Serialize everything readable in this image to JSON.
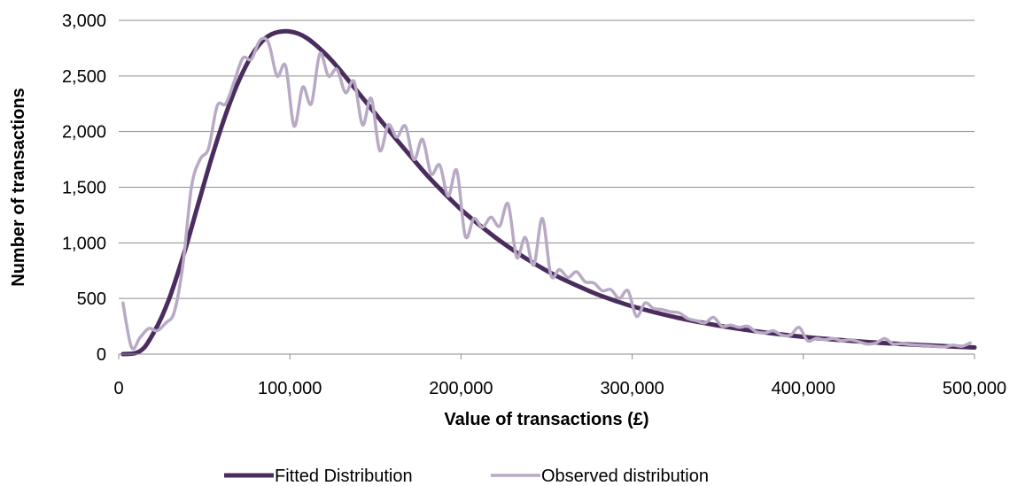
{
  "chart_data": {
    "type": "line",
    "title": "",
    "xlabel": "Value of transactions (£)",
    "ylabel": "Number of transactions",
    "xlim": [
      0,
      500000
    ],
    "ylim": [
      0,
      3000
    ],
    "x_ticks": [
      0,
      100000,
      200000,
      300000,
      400000,
      500000
    ],
    "x_tick_labels": [
      "0",
      "100,000",
      "200,000",
      "300,000",
      "400,000",
      "500,000"
    ],
    "y_ticks": [
      0,
      500,
      1000,
      1500,
      2000,
      2500,
      3000
    ],
    "y_tick_labels": [
      "0",
      "500",
      "1,000",
      "1,500",
      "2,000",
      "2,500",
      "3,000"
    ],
    "grid": "horizontal",
    "legend_position": "bottom",
    "series": [
      {
        "name": "Fitted Distribution",
        "color": "#4b2c5e",
        "x": [
          2500,
          10000,
          15000,
          20000,
          25000,
          30000,
          35000,
          40000,
          45000,
          50000,
          55000,
          60000,
          65000,
          70000,
          75000,
          80000,
          85000,
          90000,
          95000,
          100000,
          105000,
          110000,
          115000,
          120000,
          125000,
          130000,
          140000,
          150000,
          160000,
          170000,
          180000,
          190000,
          200000,
          210000,
          220000,
          230000,
          240000,
          250000,
          260000,
          270000,
          280000,
          290000,
          300000,
          320000,
          340000,
          360000,
          380000,
          400000,
          420000,
          440000,
          460000,
          480000,
          500000
        ],
        "y": [
          0,
          10,
          60,
          180,
          330,
          520,
          750,
          1000,
          1270,
          1540,
          1800,
          2040,
          2260,
          2450,
          2610,
          2740,
          2830,
          2880,
          2900,
          2900,
          2880,
          2840,
          2780,
          2710,
          2630,
          2540,
          2350,
          2160,
          1970,
          1790,
          1610,
          1450,
          1300,
          1170,
          1050,
          940,
          840,
          750,
          670,
          600,
          535,
          480,
          430,
          350,
          285,
          232,
          190,
          155,
          128,
          106,
          88,
          73,
          60
        ]
      },
      {
        "name": "Observed distribution",
        "color": "#b8aac4",
        "x": [
          2500,
          7500,
          12500,
          17500,
          22500,
          27500,
          32500,
          37500,
          42500,
          47500,
          52500,
          57500,
          62500,
          67500,
          72500,
          77500,
          82500,
          87500,
          92500,
          97500,
          102500,
          107500,
          112500,
          117500,
          122500,
          127500,
          132500,
          137500,
          142500,
          147500,
          152500,
          157500,
          162500,
          167500,
          172500,
          177500,
          182500,
          187500,
          192500,
          197500,
          202500,
          207500,
          212500,
          217500,
          222500,
          227500,
          232500,
          237500,
          242500,
          247500,
          252500,
          257500,
          262500,
          267500,
          272500,
          277500,
          282500,
          287500,
          292500,
          297500,
          302500,
          307500,
          312500,
          317500,
          322500,
          327500,
          332500,
          337500,
          342500,
          347500,
          352500,
          357500,
          362500,
          367500,
          372500,
          377500,
          382500,
          387500,
          392500,
          397500,
          402500,
          407500,
          412500,
          417500,
          422500,
          427500,
          432500,
          437500,
          442500,
          447500,
          452500,
          457500,
          462500,
          467500,
          472500,
          477500,
          482500,
          487500,
          492500,
          497500
        ],
        "y": [
          460,
          60,
          150,
          230,
          210,
          280,
          380,
          800,
          1500,
          1750,
          1850,
          2230,
          2250,
          2450,
          2660,
          2650,
          2820,
          2800,
          2500,
          2590,
          2050,
          2400,
          2250,
          2700,
          2500,
          2560,
          2350,
          2450,
          2060,
          2300,
          1830,
          2060,
          1950,
          2050,
          1750,
          1930,
          1620,
          1700,
          1420,
          1650,
          1060,
          1220,
          1140,
          1230,
          1150,
          1350,
          870,
          1050,
          800,
          1220,
          710,
          760,
          690,
          740,
          650,
          640,
          570,
          580,
          500,
          570,
          340,
          460,
          410,
          400,
          380,
          370,
          320,
          300,
          280,
          330,
          250,
          260,
          240,
          250,
          200,
          190,
          210,
          170,
          170,
          240,
          120,
          140,
          130,
          140,
          120,
          130,
          110,
          90,
          100,
          140,
          90,
          95,
          85,
          80,
          75,
          70,
          65,
          80,
          70,
          100
        ]
      }
    ]
  }
}
